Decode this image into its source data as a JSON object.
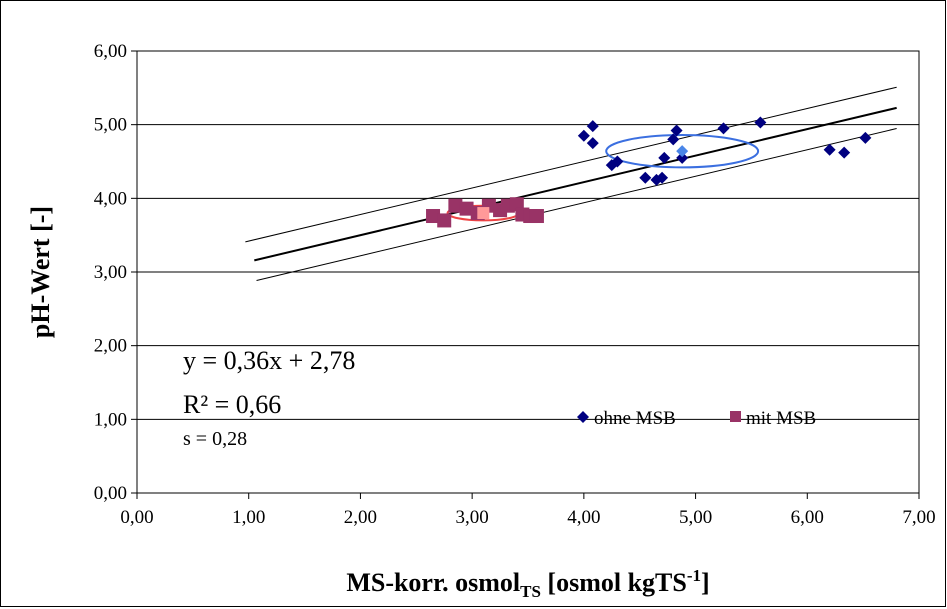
{
  "chart_data": {
    "type": "scatter",
    "xlabel": "MS-korr. osmol",
    "xlabel_sub": "TS",
    "xlabel_tail": " [osmol kgTS",
    "xlabel_sup": "-1",
    "xlabel_end": "]",
    "ylabel": "pH-Wert [-]",
    "xlim": [
      0,
      7
    ],
    "ylim": [
      0,
      6
    ],
    "x_ticks": [
      "0,00",
      "1,00",
      "2,00",
      "3,00",
      "4,00",
      "5,00",
      "6,00",
      "7,00"
    ],
    "y_ticks": [
      "0,00",
      "1,00",
      "2,00",
      "3,00",
      "4,00",
      "5,00",
      "6,00"
    ],
    "grid": "horizontal",
    "legend_position": "bottom-right",
    "series": [
      {
        "name": "ohne MSB",
        "marker": "diamond",
        "color": "#000080",
        "points": [
          [
            4.0,
            4.85
          ],
          [
            4.08,
            4.98
          ],
          [
            4.08,
            4.75
          ],
          [
            4.25,
            4.45
          ],
          [
            4.3,
            4.5
          ],
          [
            4.55,
            4.28
          ],
          [
            4.65,
            4.25
          ],
          [
            4.7,
            4.28
          ],
          [
            4.72,
            4.55
          ],
          [
            4.8,
            4.8
          ],
          [
            4.83,
            4.92
          ],
          [
            4.88,
            4.55
          ],
          [
            5.25,
            4.95
          ],
          [
            5.58,
            5.03
          ],
          [
            6.2,
            4.66
          ],
          [
            6.33,
            4.62
          ],
          [
            6.52,
            4.82
          ]
        ]
      },
      {
        "name": "mit MSB",
        "marker": "square",
        "color": "#993366",
        "points": [
          [
            2.65,
            3.76
          ],
          [
            2.75,
            3.7
          ],
          [
            2.85,
            3.9
          ],
          [
            2.95,
            3.86
          ],
          [
            3.05,
            3.8
          ],
          [
            3.15,
            3.9
          ],
          [
            3.25,
            3.84
          ],
          [
            3.32,
            3.9
          ],
          [
            3.4,
            3.92
          ],
          [
            3.45,
            3.78
          ],
          [
            3.52,
            3.76
          ],
          [
            3.58,
            3.76
          ]
        ]
      }
    ],
    "centroids": [
      {
        "x": 4.88,
        "y": 4.64,
        "color": "#4a86e8",
        "ellipse_rx": 0.68,
        "ellipse_ry": 0.22,
        "ellipse_color": "#3b6fe0"
      },
      {
        "x": 3.1,
        "y": 3.8,
        "color": "#ff9999",
        "ellipse_rx": 0.32,
        "ellipse_ry": 0.1,
        "ellipse_color": "#ee4444"
      }
    ],
    "regression": {
      "slope": 0.36,
      "intercept": 2.78,
      "band": 0.28,
      "x_range": [
        0.97,
        6.8
      ]
    },
    "annotations": {
      "equation": "y = 0,36x + 2,78",
      "r2": "R² = 0,66",
      "s": "s = 0,28"
    }
  }
}
